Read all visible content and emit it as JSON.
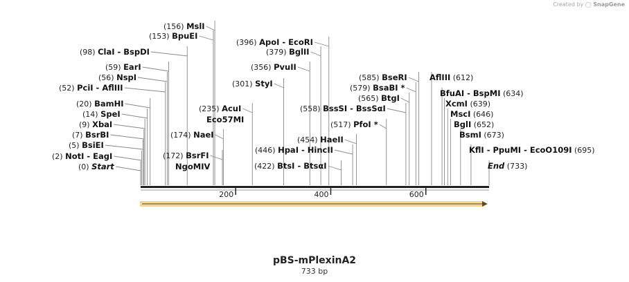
{
  "credit": {
    "prefix": "Created by",
    "brand": "SnapGene",
    "icon": "snapgene-logo-icon"
  },
  "plasmid": {
    "name": "pBS-mPlexinA2",
    "length_label": "733 bp"
  },
  "feature_arrow": {
    "color": "#f0b030",
    "direction": "forward"
  },
  "axis": {
    "start": 0,
    "end": 733,
    "ticks": [
      {
        "value": 200,
        "label": "200"
      },
      {
        "value": 400,
        "label": "400"
      },
      {
        "value": 600,
        "label": "600"
      }
    ]
  },
  "sites": [
    {
      "pos": 0,
      "pos_label": "(0)",
      "names": [
        "Start"
      ],
      "italic": true
    },
    {
      "pos": 2,
      "pos_label": "(2)",
      "names": [
        "NotI",
        "EagI"
      ]
    },
    {
      "pos": 5,
      "pos_label": "(5)",
      "names": [
        "BsiEI"
      ]
    },
    {
      "pos": 7,
      "pos_label": "(7)",
      "names": [
        "BsrBI"
      ]
    },
    {
      "pos": 9,
      "pos_label": "(9)",
      "names": [
        "XbaI"
      ]
    },
    {
      "pos": 14,
      "pos_label": "(14)",
      "names": [
        "SpeI"
      ]
    },
    {
      "pos": 20,
      "pos_label": "(20)",
      "names": [
        "BamHI"
      ]
    },
    {
      "pos": 52,
      "pos_label": "(52)",
      "names": [
        "PciI",
        "AflIII"
      ]
    },
    {
      "pos": 56,
      "pos_label": "(56)",
      "names": [
        "NspI"
      ]
    },
    {
      "pos": 59,
      "pos_label": "(59)",
      "names": [
        "EarI"
      ]
    },
    {
      "pos": 98,
      "pos_label": "(98)",
      "names": [
        "ClaI",
        "BspDI"
      ]
    },
    {
      "pos": 153,
      "pos_label": "(153)",
      "names": [
        "BpuEI"
      ]
    },
    {
      "pos": 156,
      "pos_label": "(156)",
      "names": [
        "MslI"
      ]
    },
    {
      "pos": 172,
      "pos_label": "(172)",
      "names": [
        "BsrFI"
      ],
      "sub": "NgoMIV"
    },
    {
      "pos": 174,
      "pos_label": "(174)",
      "names": [
        "NaeI"
      ]
    },
    {
      "pos": 235,
      "pos_label": "(235)",
      "names": [
        "AcuI"
      ],
      "sub": "Eco57MI"
    },
    {
      "pos": 301,
      "pos_label": "(301)",
      "names": [
        "StyI"
      ]
    },
    {
      "pos": 356,
      "pos_label": "(356)",
      "names": [
        "PvuII"
      ]
    },
    {
      "pos": 379,
      "pos_label": "(379)",
      "names": [
        "BglII"
      ]
    },
    {
      "pos": 396,
      "pos_label": "(396)",
      "names": [
        "ApoI",
        "EcoRI"
      ]
    },
    {
      "pos": 422,
      "pos_label": "(422)",
      "names": [
        "BtsI",
        "BtsαI"
      ]
    },
    {
      "pos": 446,
      "pos_label": "(446)",
      "names": [
        "HpaI",
        "HincII"
      ]
    },
    {
      "pos": 454,
      "pos_label": "(454)",
      "names": [
        "HaeII"
      ]
    },
    {
      "pos": 517,
      "pos_label": "(517)",
      "names": [
        "PfoI *"
      ]
    },
    {
      "pos": 558,
      "pos_label": "(558)",
      "names": [
        "BssSI",
        "BssSαI"
      ]
    },
    {
      "pos": 565,
      "pos_label": "(565)",
      "names": [
        "BtgI"
      ]
    },
    {
      "pos": 579,
      "pos_label": "(579)",
      "names": [
        "BsaBI *"
      ]
    },
    {
      "pos": 585,
      "pos_label": "(585)",
      "names": [
        "BseRI"
      ]
    },
    {
      "pos": 612,
      "pos_label": "(612)",
      "names": [
        "AflIII"
      ]
    },
    {
      "pos": 634,
      "pos_label": "(634)",
      "names": [
        "BfuAI",
        "BspMI"
      ]
    },
    {
      "pos": 639,
      "pos_label": "(639)",
      "names": [
        "XcmI"
      ]
    },
    {
      "pos": 646,
      "pos_label": "(646)",
      "names": [
        "MscI"
      ]
    },
    {
      "pos": 652,
      "pos_label": "(652)",
      "names": [
        "BglI"
      ]
    },
    {
      "pos": 673,
      "pos_label": "(673)",
      "names": [
        "BsmI"
      ]
    },
    {
      "pos": 695,
      "pos_label": "(695)",
      "names": [
        "KflI",
        "PpuMI",
        "EcoO109I"
      ]
    },
    {
      "pos": 733,
      "pos_label": "(733)",
      "names": [
        "End"
      ],
      "italic": true
    }
  ]
}
